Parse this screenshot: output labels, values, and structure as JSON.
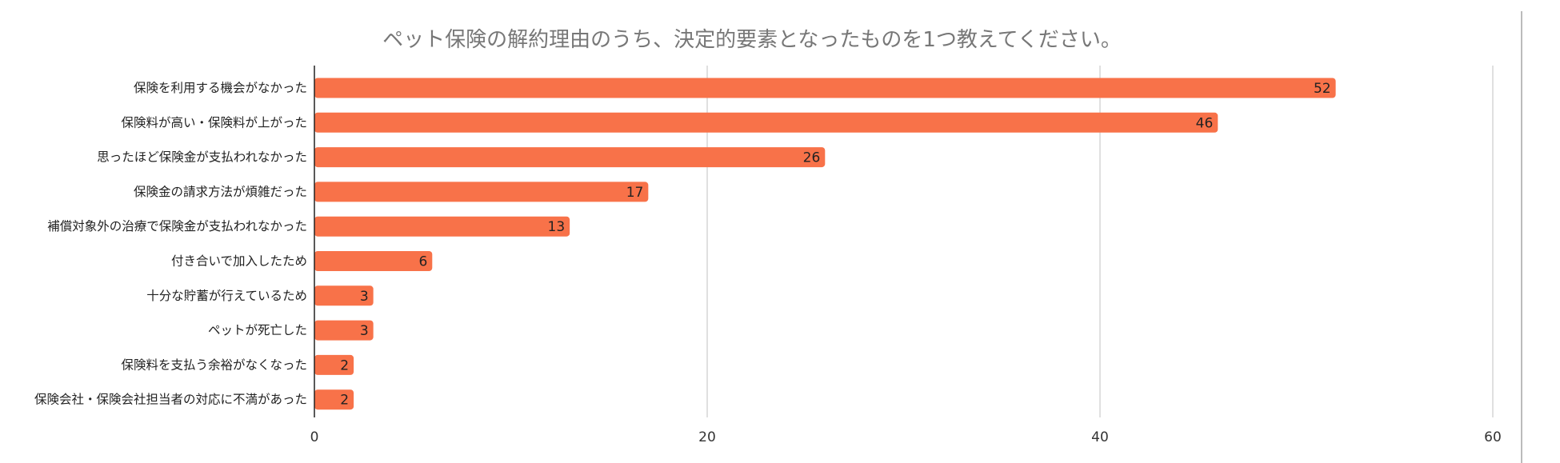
{
  "chart_data": {
    "type": "bar",
    "orientation": "horizontal",
    "title": "ペット保険の解約理由のうち、決定的要素となったものを1つ教えてください。",
    "categories": [
      "保険を利用する機会がなかった",
      "保険料が高い・保険料が上がった",
      "思ったほど保険金が支払われなかった",
      "保険金の請求方法が煩雑だった",
      "補償対象外の治療で保険金が支払われなかった",
      "付き合いで加入したため",
      "十分な貯蓄が行えているため",
      "ペットが死亡した",
      "保険料を支払う余裕がなくなった",
      "保険会社・保険会社担当者の対応に不満があった"
    ],
    "values": [
      52,
      46,
      26,
      17,
      13,
      6,
      3,
      3,
      2,
      2
    ],
    "xlim": [
      0,
      60
    ],
    "xticks": [
      "0",
      "20",
      "40",
      "60"
    ],
    "grid": true,
    "bar_color": "#f87249",
    "legend": "none"
  }
}
